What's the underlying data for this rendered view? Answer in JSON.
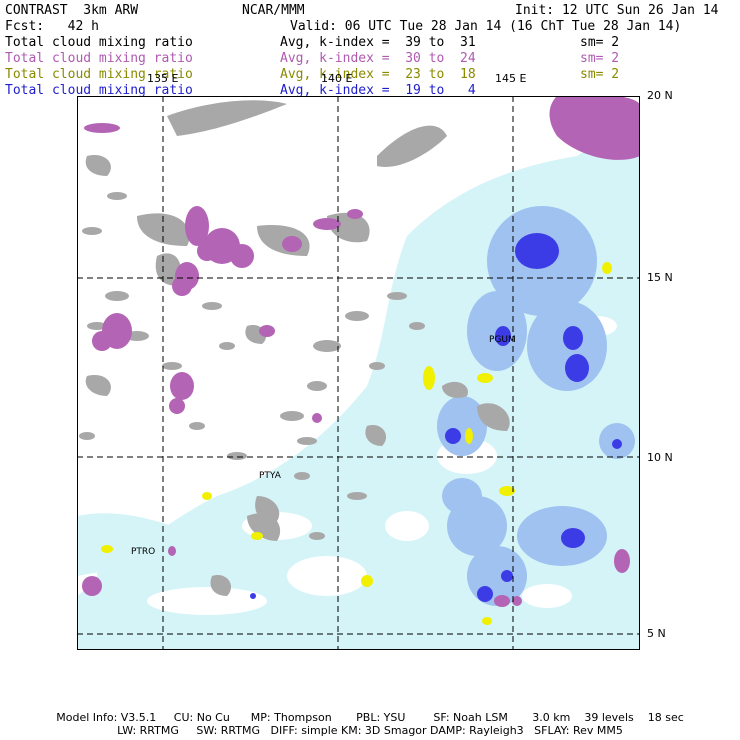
{
  "header": {
    "model": "CONTRAST  3km ARW",
    "center": "NCAR/MMM",
    "init": "Init: 12 UTC Sun 26 Jan 14",
    "fcst": "Fcst:   42 h",
    "valid": "Valid: 06 UTC Tue 28 Jan 14 (16 ChT Tue 28 Jan 14)"
  },
  "fields": [
    {
      "name": "Total cloud mixing ratio",
      "avg": "Avg, k-index =  39 to  31",
      "sm": "sm= 2",
      "color": "#000000"
    },
    {
      "name": "Total cloud mixing ratio",
      "avg": "Avg, k-index =  30 to  24",
      "sm": "sm= 2",
      "color": "#b05ab0"
    },
    {
      "name": "Total cloud mixing ratio",
      "avg": "Avg, k-index =  23 to  18",
      "sm": "sm= 2",
      "color": "#8a8a00"
    },
    {
      "name": "Total cloud mixing ratio",
      "avg": "Avg, k-index =  19 to   4",
      "sm": "",
      "color": "#1e1ecc"
    }
  ],
  "map": {
    "lon_labels": [
      "135 E",
      "140 E",
      "145 E"
    ],
    "lat_labels": [
      "20 N",
      "15 N",
      "10 N",
      "5 N"
    ],
    "stations": [
      "PGUM",
      "PTYA",
      "PTRO"
    ],
    "colors": {
      "gray_cloud": "#a8a8a8",
      "purple_cloud": "#b464b4",
      "yellow_cloud": "#f0f000",
      "light_blue": "#d4f4f8",
      "mid_blue": "#9fc2f0",
      "deep_blue": "#3c3ce6"
    }
  },
  "footer": {
    "line1": "Model Info: V3.5.1     CU: No Cu      MP: Thompson       PBL: YSU        SF: Noah LSM       3.0 km    39 levels    18 sec",
    "line2": "LW: RRTMG     SW: RRTMG   DIFF: simple KM: 3D Smagor DAMP: Rayleigh3   SFLAY: Rev MM5"
  }
}
